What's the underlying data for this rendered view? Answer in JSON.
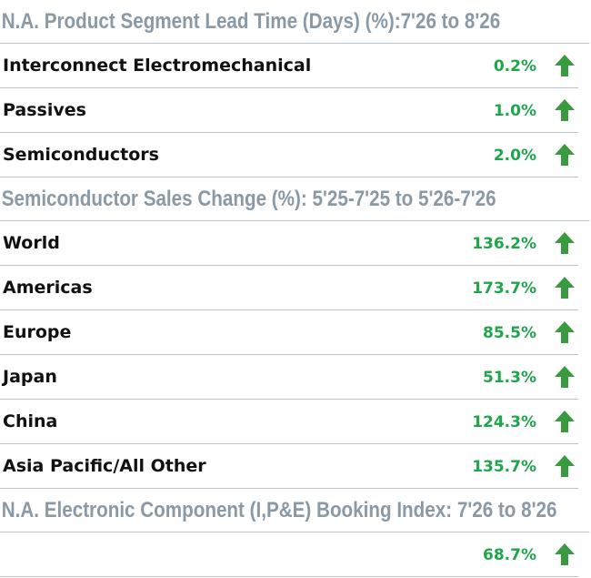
{
  "sections": [
    {
      "title": "N.A. Product Segment Lead Time (Days) (%):7'26 to 8'26",
      "rows": [
        {
          "label": "Interconnect Electromechanical",
          "value": "0.2%"
        },
        {
          "label": "Passives",
          "value": "1.0%"
        },
        {
          "label": "Semiconductors",
          "value": "2.0%"
        }
      ]
    },
    {
      "title": "Semiconductor Sales Change (%): 5'25-7'25 to 5'26-7'26",
      "rows": [
        {
          "label": "World",
          "value": "136.2%"
        },
        {
          "label": "Americas",
          "value": "173.7%"
        },
        {
          "label": "Europe",
          "value": "85.5%"
        },
        {
          "label": "Japan",
          "value": "51.3%"
        },
        {
          "label": "China",
          "value": "124.3%"
        },
        {
          "label": "Asia Pacific/All Other",
          "value": "135.7%"
        }
      ]
    },
    {
      "title": "N.A. Electronic Component (I,P&E) Booking Index: 7'26 to 8'26",
      "rows": [
        {
          "label": "",
          "value": "68.7%"
        }
      ]
    }
  ],
  "colors": {
    "heading": "#8a99a6",
    "positive": "#1fa54a",
    "arrow": "#3a9a3f"
  },
  "icons": {
    "trend": "arrow-up-icon"
  }
}
